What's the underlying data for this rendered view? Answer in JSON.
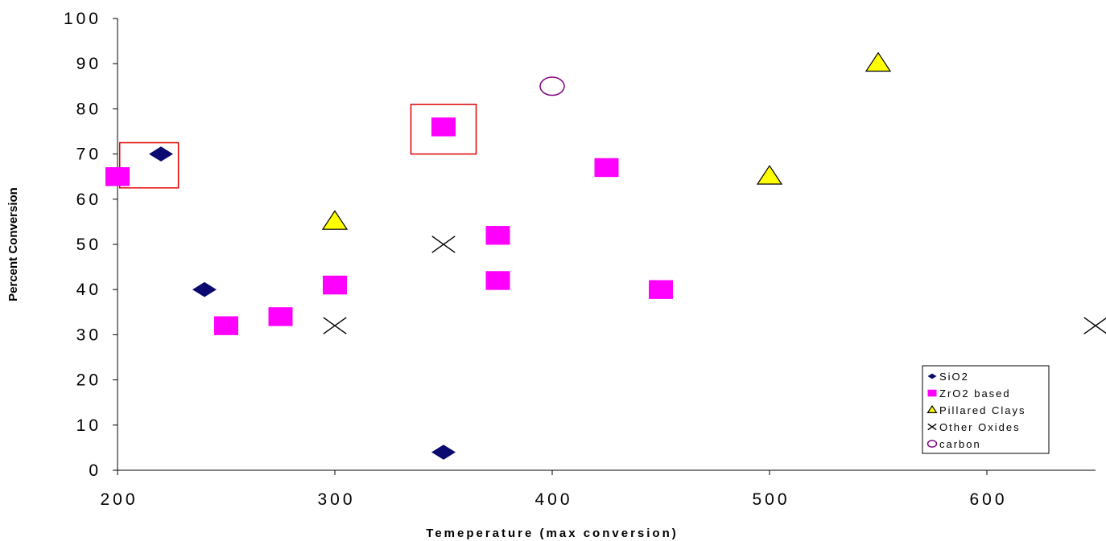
{
  "chart_data": {
    "type": "scatter",
    "xlabel": "Temeperature (max conversion)",
    "ylabel": "Percent Conversion",
    "xlim": [
      200,
      650
    ],
    "ylim": [
      0,
      100
    ],
    "xticks": [
      "200",
      "300",
      "400",
      "500",
      "600"
    ],
    "yticks": [
      "0",
      "10",
      "20",
      "30",
      "40",
      "50",
      "60",
      "70",
      "80",
      "90",
      "100"
    ],
    "grid": false,
    "legend_position": "bottom-right",
    "series": [
      {
        "name": "SiO2",
        "label": "SiO2",
        "marker": "diamond",
        "color": "#0a0a70",
        "points": [
          [
            220,
            70
          ],
          [
            240,
            40
          ],
          [
            350,
            4
          ]
        ]
      },
      {
        "name": "ZrO2 based",
        "label": "ZrO2 based",
        "marker": "square",
        "color": "#ff00ff",
        "points": [
          [
            200,
            65
          ],
          [
            250,
            32
          ],
          [
            275,
            34
          ],
          [
            300,
            41
          ],
          [
            350,
            76
          ],
          [
            375,
            52
          ],
          [
            375,
            42
          ],
          [
            425,
            67
          ],
          [
            450,
            40
          ]
        ]
      },
      {
        "name": "Pillared Clays",
        "label": "Pillared Clays",
        "marker": "triangle",
        "color": "#ffff00",
        "points": [
          [
            300,
            55
          ],
          [
            500,
            65
          ],
          [
            550,
            90
          ]
        ]
      },
      {
        "name": "Other Oxides",
        "label": "Other Oxides",
        "marker": "x",
        "color": "#000000",
        "points": [
          [
            300,
            32
          ],
          [
            350,
            50
          ],
          [
            650,
            32
          ]
        ]
      },
      {
        "name": "carbon",
        "label": "carbon",
        "marker": "circle",
        "color": "#800080",
        "points": [
          [
            400,
            85
          ]
        ]
      }
    ],
    "highlight_color": "#e00000",
    "highlights": [
      {
        "x": [
          201,
          228
        ],
        "y": [
          62.5,
          72.5
        ]
      },
      {
        "x": [
          335,
          365
        ],
        "y": [
          70,
          81
        ]
      }
    ]
  }
}
